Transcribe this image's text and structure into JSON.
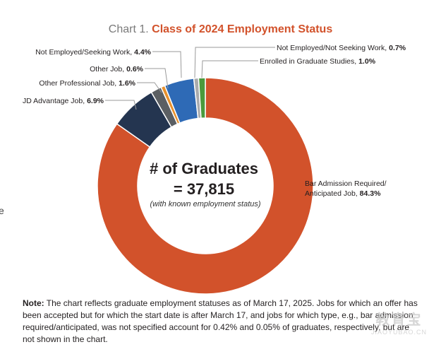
{
  "title": {
    "prefix": "Chart 1.",
    "main": "Class of 2024 Employment Status"
  },
  "center": {
    "line1": "# of Graduates",
    "line2": "= 37,815",
    "line3": "(with known employment status)"
  },
  "edge_text": "e",
  "note": {
    "label": "Note:",
    "text": "The chart reflects graduate employment statuses as of March 17, 2025. Jobs for which an offer has been accepted but for which the start date is after March 17, and jobs for which type, e.g., bar admission required/anticipated, was not specified account for 0.42% and 0.05% of graduates, respectively, but are not shown in the chart."
  },
  "watermark": {
    "main": "教育宝",
    "sub": "JIAOYUBAO.CN"
  },
  "chart_data": {
    "type": "pie",
    "donut": true,
    "start_angle_deg": 0,
    "direction": "clockwise",
    "slices": [
      {
        "label": "Bar Admission Required/ Anticipated Job",
        "label_lines": [
          "Bar Admission Required/",
          "Anticipated Job, "
        ],
        "pct_text": "84.3%",
        "value": 84.3,
        "color": "#d2522b"
      },
      {
        "label": "JD Advantage Job",
        "label_lines": [
          "JD Advantage Job, "
        ],
        "pct_text": "6.9%",
        "value": 6.9,
        "color": "#243550"
      },
      {
        "label": "Other Professional Job",
        "label_lines": [
          "Other Professional Job, "
        ],
        "pct_text": "1.6%",
        "value": 1.6,
        "color": "#5b5f63"
      },
      {
        "label": "Other Job",
        "label_lines": [
          "Other Job, "
        ],
        "pct_text": "0.6%",
        "value": 0.6,
        "color": "#e8912d"
      },
      {
        "label": "Not Employed/Seeking Work",
        "label_lines": [
          "Not Employed/Seeking Work, "
        ],
        "pct_text": "4.4%",
        "value": 4.4,
        "color": "#2e6ab6"
      },
      {
        "label": "Not Employed/Not Seeking Work",
        "label_lines": [
          "Not Employed/Not Seeking Work, "
        ],
        "pct_text": "0.7%",
        "value": 0.7,
        "color": "#a9abad"
      },
      {
        "label": "Enrolled in Graduate Studies",
        "label_lines": [
          "Enrolled in Graduate Studies, "
        ],
        "pct_text": "1.0%",
        "value": 1.0,
        "color": "#4a9a3c"
      }
    ]
  }
}
